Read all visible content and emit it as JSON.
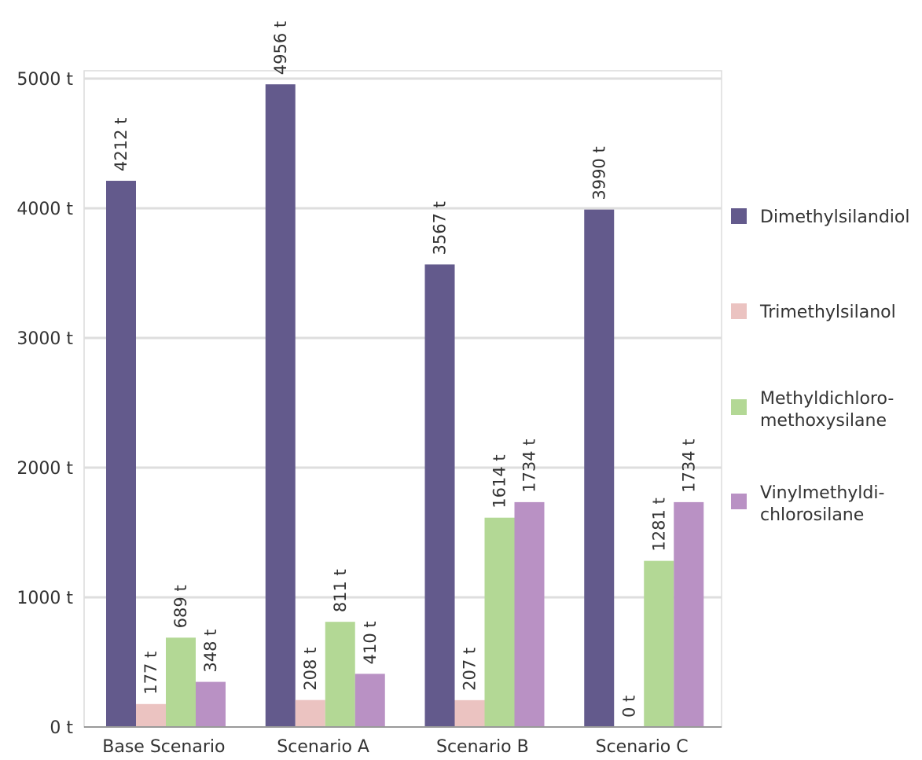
{
  "chart_data": {
    "type": "bar",
    "categories": [
      "Base Scenario",
      "Scenario A",
      "Scenario B",
      "Scenario C"
    ],
    "series": [
      {
        "name": "Dimethylsilandiol",
        "color": "#635a8c",
        "values": [
          4212,
          4956,
          3567,
          3990
        ],
        "labels": [
          "4212 t",
          "4956 t",
          "3567 t",
          "3990 t"
        ]
      },
      {
        "name": "Trimethylsilanol",
        "color": "#ebc3c1",
        "values": [
          177,
          208,
          207,
          0
        ],
        "labels": [
          "177 t",
          "208 t",
          "207 t",
          "0 t"
        ]
      },
      {
        "name": "Methyldichloro-\nmethoxysilane",
        "color": "#b3d895",
        "values": [
          689,
          811,
          1614,
          1281
        ],
        "labels": [
          "689 t",
          "811 t",
          "1614 t",
          "1281 t"
        ]
      },
      {
        "name": "Vinylmethyldi-\nchlorosilane",
        "color": "#b991c4",
        "values": [
          348,
          410,
          1734,
          1734
        ],
        "labels": [
          "348 t",
          "410 t",
          "1734 t",
          "1734 t"
        ]
      }
    ],
    "y_ticks": [
      0,
      1000,
      2000,
      3000,
      4000,
      5000
    ],
    "y_tick_labels": [
      "0 t",
      "1000 t",
      "2000 t",
      "3000 t",
      "4000 t",
      "5000 t"
    ],
    "ylim": [
      0,
      5000
    ],
    "grid": true,
    "legend_position": "right"
  }
}
